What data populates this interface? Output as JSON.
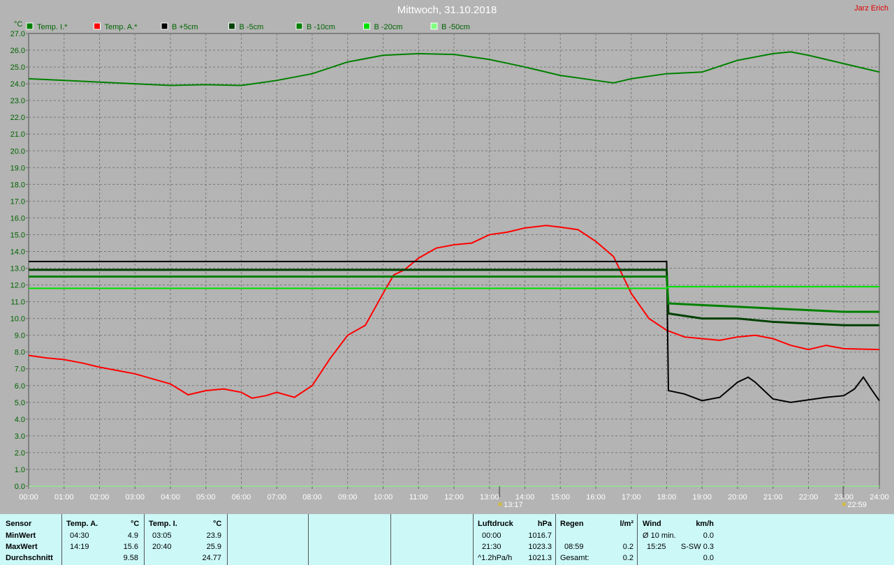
{
  "header": {
    "title": "Mittwoch, 31.10.2018",
    "author": "Jarz Erich"
  },
  "chart_data": {
    "type": "line",
    "ylabel": "°C",
    "ylim": [
      0,
      27
    ],
    "ytick_step": 1,
    "xlim": [
      0,
      24
    ],
    "xticks": [
      "00:00",
      "01:00",
      "02:00",
      "03:00",
      "04:00",
      "05:00",
      "06:00",
      "07:00",
      "08:00",
      "09:00",
      "10:00",
      "11:00",
      "12:00",
      "13:00",
      "14:00",
      "15:00",
      "16:00",
      "17:00",
      "18:00",
      "19:00",
      "20:00",
      "21:00",
      "22:00",
      "23:00",
      "24:00"
    ],
    "grid": true,
    "legend_position": "top",
    "markers": [
      {
        "x": 13.283,
        "label": "13:17"
      },
      {
        "x": 22.983,
        "label": "22:59"
      }
    ],
    "series": [
      {
        "name": "Temp. I.*",
        "color": "#008000",
        "width": 2,
        "points": [
          [
            0,
            24.3
          ],
          [
            1,
            24.2
          ],
          [
            2,
            24.1
          ],
          [
            3,
            24.0
          ],
          [
            4,
            23.9
          ],
          [
            5,
            23.95
          ],
          [
            6,
            23.9
          ],
          [
            7,
            24.2
          ],
          [
            8,
            24.6
          ],
          [
            9,
            25.3
          ],
          [
            10,
            25.7
          ],
          [
            11,
            25.8
          ],
          [
            12,
            25.75
          ],
          [
            13,
            25.45
          ],
          [
            14,
            25.0
          ],
          [
            15,
            24.5
          ],
          [
            16,
            24.2
          ],
          [
            16.5,
            24.05
          ],
          [
            17,
            24.3
          ],
          [
            18,
            24.6
          ],
          [
            19,
            24.7
          ],
          [
            20,
            25.4
          ],
          [
            21,
            25.8
          ],
          [
            21.5,
            25.9
          ],
          [
            22,
            25.7
          ],
          [
            23,
            25.2
          ],
          [
            24,
            24.7
          ]
        ]
      },
      {
        "name": "Temp. A.*",
        "color": "#ff0000",
        "width": 2,
        "points": [
          [
            0,
            7.8
          ],
          [
            0.5,
            7.65
          ],
          [
            1,
            7.55
          ],
          [
            1.5,
            7.35
          ],
          [
            2,
            7.1
          ],
          [
            2.5,
            6.9
          ],
          [
            3,
            6.7
          ],
          [
            3.5,
            6.4
          ],
          [
            4,
            6.1
          ],
          [
            4.5,
            5.45
          ],
          [
            5,
            5.7
          ],
          [
            5.5,
            5.8
          ],
          [
            6,
            5.6
          ],
          [
            6.3,
            5.25
          ],
          [
            6.7,
            5.4
          ],
          [
            7,
            5.6
          ],
          [
            7.5,
            5.3
          ],
          [
            8,
            6.0
          ],
          [
            8.5,
            7.6
          ],
          [
            9,
            9.0
          ],
          [
            9.5,
            9.6
          ],
          [
            10,
            11.5
          ],
          [
            10.3,
            12.6
          ],
          [
            10.6,
            12.9
          ],
          [
            11,
            13.6
          ],
          [
            11.5,
            14.2
          ],
          [
            12,
            14.4
          ],
          [
            12.5,
            14.5
          ],
          [
            13,
            15.0
          ],
          [
            13.5,
            15.15
          ],
          [
            14,
            15.4
          ],
          [
            14.6,
            15.55
          ],
          [
            15,
            15.45
          ],
          [
            15.5,
            15.3
          ],
          [
            16,
            14.6
          ],
          [
            16.5,
            13.7
          ],
          [
            17,
            11.5
          ],
          [
            17.5,
            10.0
          ],
          [
            18,
            9.3
          ],
          [
            18.5,
            8.9
          ],
          [
            19,
            8.8
          ],
          [
            19.5,
            8.7
          ],
          [
            20,
            8.9
          ],
          [
            20.5,
            9.0
          ],
          [
            21,
            8.8
          ],
          [
            21.5,
            8.4
          ],
          [
            22,
            8.15
          ],
          [
            22.5,
            8.4
          ],
          [
            23,
            8.2
          ],
          [
            24,
            8.15
          ]
        ]
      },
      {
        "name": "B +5cm",
        "color": "#000000",
        "width": 2,
        "points": [
          [
            0,
            13.4
          ],
          [
            18,
            13.4
          ],
          [
            18.05,
            5.7
          ],
          [
            18.5,
            5.5
          ],
          [
            19,
            5.1
          ],
          [
            19.5,
            5.3
          ],
          [
            20,
            6.2
          ],
          [
            20.3,
            6.5
          ],
          [
            20.5,
            6.2
          ],
          [
            21,
            5.2
          ],
          [
            21.5,
            5.0
          ],
          [
            22,
            5.15
          ],
          [
            22.5,
            5.3
          ],
          [
            23,
            5.4
          ],
          [
            23.3,
            5.8
          ],
          [
            23.55,
            6.5
          ],
          [
            23.8,
            5.7
          ],
          [
            24,
            5.1
          ]
        ]
      },
      {
        "name": "B -5cm",
        "color": "#004000",
        "width": 3,
        "points": [
          [
            0,
            12.9
          ],
          [
            18,
            12.9
          ],
          [
            18.05,
            10.3
          ],
          [
            19,
            10.0
          ],
          [
            20,
            10.0
          ],
          [
            21,
            9.8
          ],
          [
            22,
            9.7
          ],
          [
            23,
            9.6
          ],
          [
            24,
            9.6
          ]
        ]
      },
      {
        "name": "B -10cm",
        "color": "#008000",
        "width": 3,
        "points": [
          [
            0,
            12.5
          ],
          [
            18,
            12.5
          ],
          [
            18.05,
            10.9
          ],
          [
            19,
            10.8
          ],
          [
            20,
            10.7
          ],
          [
            21,
            10.6
          ],
          [
            22,
            10.5
          ],
          [
            23,
            10.4
          ],
          [
            24,
            10.4
          ]
        ]
      },
      {
        "name": "B -20cm",
        "color": "#00e000",
        "width": 2,
        "points": [
          [
            0,
            11.8
          ],
          [
            18,
            11.8
          ],
          [
            18.05,
            11.9
          ],
          [
            24,
            11.9
          ]
        ]
      },
      {
        "name": "B -50cm",
        "color": "#80ff80",
        "width": 1,
        "points": [
          [
            0,
            0
          ],
          [
            24,
            0
          ]
        ]
      }
    ]
  },
  "stats": {
    "sensor": [
      "Sensor",
      "MinWert",
      "MaxWert",
      "Durchschnitt"
    ],
    "temp_a": {
      "header": "Temp. A.",
      "unit": "°C",
      "min_time": "04:30",
      "min": "4.9",
      "max_time": "14:19",
      "max": "15.6",
      "avg": "9.58"
    },
    "temp_i": {
      "header": "Temp. I.",
      "unit": "°C",
      "min_time": "03:05",
      "min": "23.9",
      "max_time": "20:40",
      "max": "25.9",
      "avg": "24.77"
    },
    "luftdruck": {
      "header": "Luftdruck",
      "unit": "hPa",
      "r1a": "00:00",
      "r1b": "1016.7",
      "r2a": "21:30",
      "r2b": "1023.3",
      "r3a": "^1.2hPa/h",
      "r3b": "1021.3"
    },
    "regen": {
      "header": "Regen",
      "unit": "l/m²",
      "r2a": "08:59",
      "r2b": "0.2",
      "r3a": "Gesamt:",
      "r3b": "0.2"
    },
    "wind": {
      "header": "Wind",
      "unit": "km/h",
      "r1a": "Ø 10 min.",
      "r1b": "0.0",
      "r2a": "15:25",
      "r2b": "S-SW 0.3",
      "r3b": "0.0"
    }
  }
}
